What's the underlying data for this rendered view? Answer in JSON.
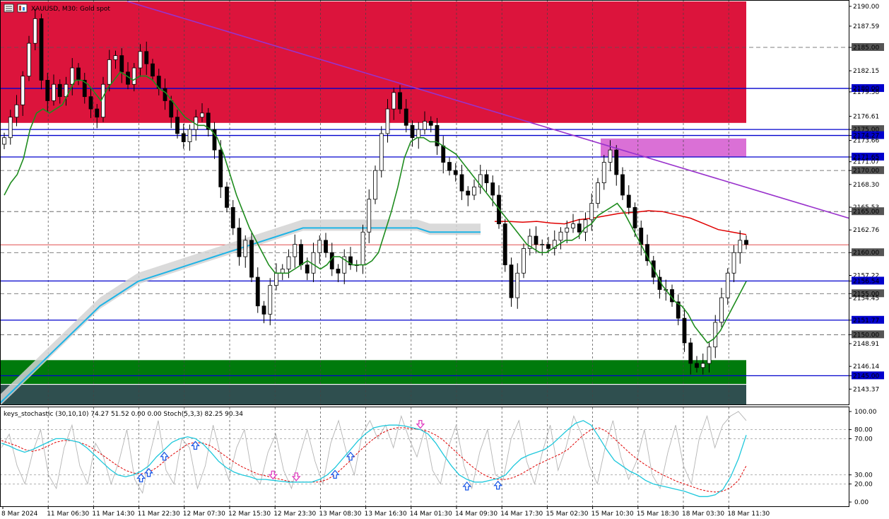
{
  "header": {
    "symbol_text": "XAUUSD, M30:  Gold spot",
    "menu_icon": "hamburger-menu-icon",
    "symbol_icon": "symbol-chart-icon"
  },
  "indicator": {
    "label": "keys_stochastic (30,10,10) 74.27 51.52 0.00 0.00 Stoch(5,3,3) 82.25 90.34"
  },
  "colors": {
    "resistance_zone": "#dc143c",
    "support_zone": "#007a0c",
    "support_zone_dark": "#2f4f4f",
    "supply_box": "#da70d6",
    "level_line": "#0000cd",
    "trendline": "#9932cc",
    "ma_fast": "#1e8c1e",
    "ma_slow": "#1eb4e6",
    "ma_upper": "#e00000",
    "zigzag_up": "#1e78e6",
    "zigzag_down": "#e00000",
    "stoch_main": "#1ec8dc",
    "stoch_signal": "#e00000",
    "stoch_fast": "#b4b4b4",
    "arrow_up": "#1e5ae6",
    "arrow_down": "#e040c0"
  },
  "chart_data": [
    {
      "type": "candlestick",
      "title": "XAUUSD, M30:  Gold spot",
      "ylim": [
        2141.5,
        2190.6
      ],
      "y_ticks": [
        "2190.00",
        "2187.59",
        "2185.00",
        "2182.15",
        "2180.00",
        "2179.58",
        "2176.61",
        "2175.00",
        "2174.27",
        "2173.66",
        "2171.65",
        "2171.07",
        "2170.00",
        "2168.30",
        "2165.53",
        "2165.00",
        "2162.76",
        "2160.00",
        "2157.22",
        "2156.54",
        "2155.00",
        "2154.45",
        "2151.77",
        "2150.00",
        "2148.91",
        "2146.14",
        "2145.00",
        "2143.37"
      ],
      "x_ticks": [
        "8 Mar 2024",
        "11 Mar 06:30",
        "11 Mar 14:30",
        "11 Mar 22:30",
        "12 Mar 07:30",
        "12 Mar 15:30",
        "12 Mar 23:30",
        "13 Mar 08:30",
        "13 Mar 16:30",
        "14 Mar 01:30",
        "14 Mar 09:30",
        "14 Mar 17:30",
        "15 Mar 02:30",
        "15 Mar 10:30",
        "15 Mar 18:30",
        "18 Mar 03:30",
        "18 Mar 11:30"
      ],
      "horizontal_levels": [
        2185.0,
        2180.0,
        2175.0,
        2174.27,
        2171.65,
        2170.0,
        2165.0,
        2160.0,
        2156.54,
        2155.0,
        2151.77,
        2150.0,
        2145.0
      ],
      "level_labels": [
        "2185.00",
        "2180.00",
        "2175.00",
        "2174.27",
        "2171.65",
        "2170.00",
        "2165.00",
        "2160.00",
        "2156.54",
        "2155.00",
        "2151.77",
        "2150.00",
        "2145.00"
      ],
      "current_price": 2160.95,
      "resistance_zone": [
        2175.8,
        2190.6
      ],
      "support_zone": [
        2144.0,
        2146.9
      ],
      "close_series": [
        2174.0,
        2176.5,
        2178.0,
        2181.5,
        2185.5,
        2188.5,
        2181.0,
        2178.5,
        2180.5,
        2179.0,
        2180.5,
        2182.5,
        2181.0,
        2179.0,
        2177.5,
        2176.5,
        2180.5,
        2183.5,
        2184.0,
        2182.0,
        2180.5,
        2182.5,
        2184.5,
        2183.0,
        2181.5,
        2180.0,
        2178.5,
        2176.5,
        2174.5,
        2173.5,
        2175.0,
        2176.5,
        2177.0,
        2175.0,
        2172.5,
        2168.0,
        2165.5,
        2163.0,
        2159.5,
        2161.5,
        2157.0,
        2153.5,
        2152.5,
        2156.0,
        2157.5,
        2158.0,
        2159.5,
        2161.0,
        2158.5,
        2157.5,
        2160.0,
        2161.5,
        2160.0,
        2158.0,
        2157.5,
        2159.5,
        2158.5,
        2158.5,
        2162.5,
        2166.5,
        2170.0,
        2174.5,
        2177.5,
        2179.5,
        2177.5,
        2175.5,
        2174.0,
        2175.0,
        2176.0,
        2175.5,
        2173.0,
        2171.0,
        2170.0,
        2169.5,
        2167.5,
        2167.0,
        2168.0,
        2169.5,
        2168.5,
        2167.0,
        2163.5,
        2158.5,
        2154.5,
        2157.5,
        2160.5,
        2162.0,
        2161.0,
        2161.0,
        2160.5,
        2161.5,
        2162.5,
        2163.0,
        2163.5,
        2162.5,
        2164.0,
        2166.0,
        2168.5,
        2171.0,
        2172.5,
        2169.5,
        2167.0,
        2165.5,
        2163.0,
        2161.0,
        2159.0,
        2157.0,
        2155.5,
        2155.5,
        2154.0,
        2152.0,
        2149.0,
        2146.5,
        2146.0,
        2146.5,
        2148.5,
        2151.5,
        2154.5,
        2157.5,
        2160.0,
        2161.5,
        2161.0
      ],
      "series": [
        {
          "name": "",
          "values": [
            2167.0,
            2168.5,
            2169.5,
            2171.5,
            2175.0,
            2177.0,
            2177.5,
            2177.0,
            2177.5,
            2178.0,
            2179.5,
            2181.0,
            2181.0,
            2180.5,
            2179.5,
            2178.5,
            2180.0,
            2181.0,
            2182.0,
            2181.5,
            2181.0,
            2181.5,
            2181.5,
            2181.0,
            2180.0,
            2179.5,
            2178.5,
            2177.5,
            2176.5,
            2176.0,
            2175.5,
            2175.5,
            2175.0,
            2174.0,
            2172.0,
            2169.5,
            2167.0,
            2165.0,
            2163.0,
            2161.5,
            2160.0,
            2158.5,
            2157.5,
            2157.5,
            2157.5,
            2158.0,
            2158.5,
            2159.0,
            2158.5,
            2158.0,
            2158.5,
            2159.5,
            2159.5,
            2159.0,
            2158.5,
            2158.5,
            2158.5,
            2159.0,
            2160.0,
            2162.5,
            2165.0,
            2168.0,
            2171.5,
            2173.5,
            2174.0,
            2174.0,
            2173.5,
            2173.5,
            2173.0,
            2172.5,
            2172.0,
            2171.0,
            2170.0,
            2169.0,
            2168.0,
            2167.0,
            2166.0,
            2165.0,
            2164.0,
            2163.0,
            2162.0,
            2161.0,
            2160.5,
            2160.0,
            2160.0,
            2160.5,
            2161.0,
            2161.5,
            2161.5,
            2162.0,
            2163.0,
            2163.5,
            2164.5,
            2165.0,
            2165.5,
            2166.0,
            2165.0,
            2163.5,
            2162.0,
            2160.5,
            2159.0,
            2157.5,
            2156.0,
            2155.0,
            2154.0,
            2153.5,
            2152.5,
            2151.0,
            2150.0,
            2149.0,
            2149.5,
            2150.5,
            2152.0,
            2153.5,
            2155.0,
            2156.5
          ]
        },
        {
          "name": "",
          "values": [
            2140.0,
            2141.5,
            2143.0,
            2144.5,
            2146.0,
            2147.5,
            2149.0,
            2150.5,
            2152.0,
            2153.5,
            2154.5,
            2155.5,
            2156.5,
            2157.0,
            2157.5,
            2158.0,
            2158.5,
            2159.0,
            2159.5,
            2160.0,
            2160.5,
            2161.0,
            2161.5,
            2162.0,
            2162.5,
            2163.0,
            2163.0,
            2163.0,
            2163.0,
            2163.0,
            2163.0,
            2163.0,
            2163.0,
            2163.0,
            2163.0,
            2162.5,
            2162.5,
            2162.5,
            2162.5,
            2162.5
          ]
        },
        {
          "name": "",
          "values": [
            2163.8,
            2163.8,
            2163.7,
            2163.8,
            2163.6,
            2163.5,
            2164.0,
            2164.2,
            2164.5,
            2164.8,
            2164.9,
            2165.1,
            2165.0,
            2164.6,
            2164.2,
            2163.5,
            2162.8,
            2162.5,
            2162.2
          ]
        }
      ]
    },
    {
      "type": "line",
      "title": "keys_stochastic (30,10,10) 74.27 51.52 0.00 0.00 Stoch(5,3,3) 82.25 90.34",
      "ylim": [
        0,
        100
      ],
      "y_ticks": [
        "100.00",
        "80.00",
        "70.00",
        "30.00",
        "20.00",
        "0.00"
      ],
      "series": [
        {
          "name": "",
          "values": [
            65,
            62,
            58,
            55,
            58,
            62,
            66,
            70,
            70,
            68,
            66,
            60,
            52,
            44,
            36,
            30,
            28,
            30,
            34,
            40,
            50,
            58,
            66,
            70,
            72,
            70,
            64,
            55,
            45,
            38,
            33,
            30,
            28,
            25,
            25,
            24,
            23,
            22,
            22,
            22,
            22,
            25,
            30,
            38,
            48,
            58,
            68,
            76,
            82,
            84,
            85,
            85,
            84,
            82,
            80,
            75,
            65,
            52,
            40,
            30,
            25,
            22,
            22,
            24,
            26,
            30,
            40,
            48,
            52,
            55,
            58,
            64,
            72,
            80,
            87,
            90,
            85,
            72,
            58,
            46,
            40,
            34,
            30,
            24,
            20,
            18,
            16,
            14,
            12,
            9,
            6,
            6,
            8,
            14,
            28,
            48,
            74
          ]
        },
        {
          "name": "",
          "values": [
            68,
            65,
            62,
            58,
            56,
            58,
            62,
            66,
            68,
            68,
            66,
            63,
            58,
            52,
            46,
            40,
            35,
            32,
            31,
            33,
            38,
            45,
            52,
            58,
            64,
            66,
            65,
            62,
            56,
            50,
            44,
            39,
            35,
            31,
            29,
            27,
            25,
            23,
            22,
            22,
            22,
            22,
            25,
            30,
            38,
            46,
            55,
            63,
            70,
            76,
            80,
            82,
            82,
            81,
            80,
            78,
            74,
            68,
            60,
            52,
            44,
            37,
            31,
            27,
            25,
            25,
            27,
            31,
            36,
            41,
            45,
            49,
            53,
            58,
            66,
            74,
            80,
            82,
            78,
            70,
            62,
            54,
            47,
            41,
            36,
            31,
            27,
            23,
            20,
            17,
            14,
            12,
            11,
            12,
            16,
            24,
            40
          ]
        },
        {
          "name": "",
          "values": [
            60,
            75,
            40,
            20,
            55,
            80,
            30,
            15,
            60,
            85,
            40,
            20,
            65,
            50,
            20,
            45,
            80,
            25,
            10,
            55,
            90,
            35,
            20,
            70,
            60,
            15,
            40,
            85,
            50,
            25,
            60,
            80,
            30,
            20,
            55,
            75,
            35,
            15,
            50,
            80,
            45,
            20,
            65,
            90,
            55,
            30,
            75,
            90,
            70,
            85,
            60,
            95,
            70,
            50,
            80,
            35,
            20,
            60,
            85,
            40,
            15,
            55,
            80,
            30,
            25,
            70,
            90,
            45,
            20,
            55,
            85,
            35,
            60,
            95,
            75,
            40,
            20,
            60,
            90,
            50,
            25,
            45,
            80,
            30,
            15,
            55,
            85,
            40,
            20,
            70,
            95,
            60,
            85,
            95,
            100,
            90
          ]
        }
      ],
      "arrows_up_at": [
        18,
        19,
        21,
        25,
        43,
        45,
        60,
        64
      ],
      "arrows_down_at": [
        35,
        38,
        54
      ],
      "hlines": [
        80,
        70,
        30,
        20
      ]
    }
  ]
}
